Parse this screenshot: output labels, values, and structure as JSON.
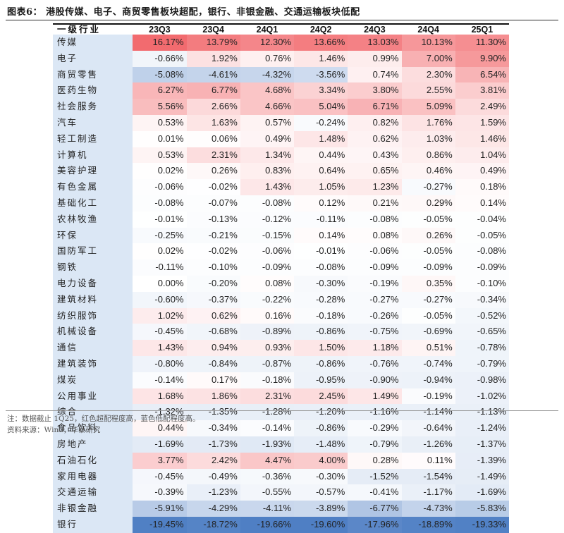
{
  "title": "图表6：  港股传媒、电子、商贸零售板块超配，银行、非银金融、交通运输板块低配",
  "table": {
    "header_label": "一级行业",
    "columns": [
      "23Q3",
      "23Q4",
      "24Q1",
      "24Q2",
      "24Q3",
      "24Q4",
      "25Q1"
    ],
    "rows": [
      {
        "industry": "传媒",
        "values": [
          "16.17%",
          "13.79%",
          "12.30%",
          "13.66%",
          "13.03%",
          "10.13%",
          "11.30%"
        ]
      },
      {
        "industry": "电子",
        "values": [
          "-0.66%",
          "1.92%",
          "0.76%",
          "1.46%",
          "0.99%",
          "7.00%",
          "9.90%"
        ]
      },
      {
        "industry": "商贸零售",
        "values": [
          "-5.08%",
          "-4.61%",
          "-4.32%",
          "-3.56%",
          "0.74%",
          "2.30%",
          "6.54%"
        ]
      },
      {
        "industry": "医药生物",
        "values": [
          "6.27%",
          "6.77%",
          "4.68%",
          "3.34%",
          "3.80%",
          "2.55%",
          "3.81%"
        ]
      },
      {
        "industry": "社会服务",
        "values": [
          "5.56%",
          "2.66%",
          "4.66%",
          "5.04%",
          "6.71%",
          "5.09%",
          "2.49%"
        ]
      },
      {
        "industry": "汽车",
        "values": [
          "0.53%",
          "1.63%",
          "0.57%",
          "-0.24%",
          "0.82%",
          "1.76%",
          "1.59%"
        ]
      },
      {
        "industry": "轻工制造",
        "values": [
          "0.01%",
          "0.06%",
          "0.49%",
          "1.48%",
          "0.62%",
          "1.03%",
          "1.46%"
        ]
      },
      {
        "industry": "计算机",
        "values": [
          "0.53%",
          "2.31%",
          "1.34%",
          "0.44%",
          "0.43%",
          "0.86%",
          "1.04%"
        ]
      },
      {
        "industry": "美容护理",
        "values": [
          "0.02%",
          "0.26%",
          "0.83%",
          "0.64%",
          "0.65%",
          "0.46%",
          "0.49%"
        ]
      },
      {
        "industry": "有色金属",
        "values": [
          "-0.06%",
          "-0.02%",
          "1.43%",
          "1.05%",
          "1.23%",
          "-0.27%",
          "0.18%"
        ]
      },
      {
        "industry": "基础化工",
        "values": [
          "-0.08%",
          "-0.07%",
          "-0.08%",
          "0.12%",
          "0.21%",
          "0.29%",
          "0.14%"
        ]
      },
      {
        "industry": "农林牧渔",
        "values": [
          "-0.01%",
          "-0.13%",
          "-0.12%",
          "-0.11%",
          "-0.08%",
          "-0.05%",
          "-0.04%"
        ]
      },
      {
        "industry": "环保",
        "values": [
          "-0.25%",
          "-0.21%",
          "-0.15%",
          "0.14%",
          "0.08%",
          "0.26%",
          "-0.05%"
        ]
      },
      {
        "industry": "国防军工",
        "values": [
          "0.02%",
          "-0.02%",
          "-0.06%",
          "-0.01%",
          "-0.06%",
          "-0.05%",
          "-0.08%"
        ]
      },
      {
        "industry": "钢铁",
        "values": [
          "-0.11%",
          "-0.10%",
          "-0.09%",
          "-0.08%",
          "-0.09%",
          "-0.09%",
          "-0.09%"
        ]
      },
      {
        "industry": "电力设备",
        "values": [
          "0.00%",
          "-0.20%",
          "0.08%",
          "-0.30%",
          "-0.19%",
          "0.35%",
          "-0.10%"
        ]
      },
      {
        "industry": "建筑材料",
        "values": [
          "-0.60%",
          "-0.37%",
          "-0.22%",
          "-0.28%",
          "-0.27%",
          "-0.27%",
          "-0.34%"
        ]
      },
      {
        "industry": "纺织服饰",
        "values": [
          "1.02%",
          "0.62%",
          "0.16%",
          "-0.18%",
          "-0.26%",
          "-0.05%",
          "-0.52%"
        ]
      },
      {
        "industry": "机械设备",
        "values": [
          "-0.45%",
          "-0.68%",
          "-0.89%",
          "-0.86%",
          "-0.75%",
          "-0.69%",
          "-0.65%"
        ]
      },
      {
        "industry": "通信",
        "values": [
          "1.43%",
          "0.94%",
          "0.93%",
          "1.50%",
          "1.18%",
          "0.51%",
          "-0.78%"
        ]
      },
      {
        "industry": "建筑装饰",
        "values": [
          "-0.80%",
          "-0.84%",
          "-0.87%",
          "-0.86%",
          "-0.76%",
          "-0.74%",
          "-0.79%"
        ]
      },
      {
        "industry": "煤炭",
        "values": [
          "-0.14%",
          "0.17%",
          "-0.18%",
          "-0.95%",
          "-0.90%",
          "-0.94%",
          "-0.98%"
        ]
      },
      {
        "industry": "公用事业",
        "values": [
          "1.68%",
          "1.86%",
          "2.31%",
          "2.45%",
          "1.49%",
          "-0.19%",
          "-1.02%"
        ]
      },
      {
        "industry": "综合",
        "values": [
          "-1.32%",
          "-1.35%",
          "-1.28%",
          "-1.20%",
          "-1.16%",
          "-1.14%",
          "-1.13%"
        ]
      },
      {
        "industry": "食品饮料",
        "values": [
          "0.44%",
          "-0.34%",
          "-0.14%",
          "-0.86%",
          "-0.29%",
          "-0.64%",
          "-1.24%"
        ]
      },
      {
        "industry": "房地产",
        "values": [
          "-1.69%",
          "-1.73%",
          "-1.93%",
          "-1.48%",
          "-0.79%",
          "-1.26%",
          "-1.37%"
        ]
      },
      {
        "industry": "石油石化",
        "values": [
          "3.77%",
          "2.42%",
          "4.47%",
          "4.00%",
          "0.28%",
          "0.11%",
          "-1.39%"
        ]
      },
      {
        "industry": "家用电器",
        "values": [
          "-0.45%",
          "-0.49%",
          "-0.36%",
          "-0.30%",
          "-1.52%",
          "-1.54%",
          "-1.49%"
        ]
      },
      {
        "industry": "交通运输",
        "values": [
          "-0.39%",
          "-1.23%",
          "-0.55%",
          "-0.57%",
          "-0.41%",
          "-1.17%",
          "-1.69%"
        ]
      },
      {
        "industry": "非银金融",
        "values": [
          "-5.91%",
          "-4.29%",
          "-4.11%",
          "-3.89%",
          "-6.77%",
          "-4.73%",
          "-5.83%"
        ]
      },
      {
        "industry": "银行",
        "values": [
          "-19.45%",
          "-18.72%",
          "-19.66%",
          "-19.60%",
          "-17.96%",
          "-18.89%",
          "-19.33%"
        ]
      }
    ]
  },
  "colors": {
    "positive_max": "#f26b6f",
    "negative_max": "#4f7fc4",
    "label_bg": "#dbe7f5"
  },
  "footer": {
    "note": "注：数据截止 1Q25，红色超配程度高，蓝色低配程度高。",
    "source": "资料来源：Wind，华泰研究"
  }
}
